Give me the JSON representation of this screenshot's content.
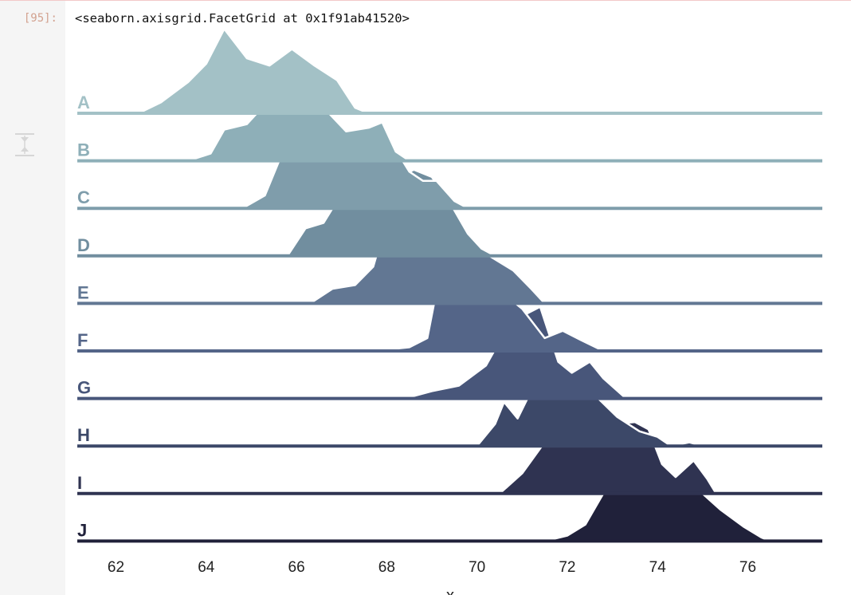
{
  "cell": {
    "prompt": "[95]:",
    "output_repr": "<seaborn.axisgrid.FacetGrid at 0x1f91ab41520>"
  },
  "icons": {
    "collapse": "collapse-output-icon"
  },
  "chart_data": {
    "type": "ridgeline",
    "xlabel": "x",
    "xlim": [
      61.2,
      77.8
    ],
    "xticks": [
      "62",
      "64",
      "66",
      "68",
      "70",
      "72",
      "74",
      "76"
    ],
    "grid": false,
    "palette": [
      "#a3c1c6",
      "#8eafb8",
      "#7f9dab",
      "#718e9f",
      "#627793",
      "#546588",
      "#48567a",
      "#3c4868",
      "#2f3351",
      "#20213a"
    ],
    "series": [
      {
        "name": "A",
        "points": [
          [
            62.5,
            0
          ],
          [
            63.0,
            0.12
          ],
          [
            63.6,
            0.34
          ],
          [
            64.0,
            0.54
          ],
          [
            64.4,
            0.92
          ],
          [
            64.9,
            0.6
          ],
          [
            65.4,
            0.52
          ],
          [
            65.9,
            0.7
          ],
          [
            66.4,
            0.52
          ],
          [
            66.9,
            0.36
          ],
          [
            67.3,
            0.06
          ],
          [
            67.6,
            0
          ]
        ]
      },
      {
        "name": "B",
        "points": [
          [
            63.6,
            0
          ],
          [
            64.1,
            0.08
          ],
          [
            64.4,
            0.34
          ],
          [
            64.9,
            0.4
          ],
          [
            65.2,
            0.56
          ],
          [
            65.6,
            1.0
          ],
          [
            66.1,
            0.8
          ],
          [
            66.6,
            0.58
          ],
          [
            67.1,
            0.32
          ],
          [
            67.6,
            0.36
          ],
          [
            67.9,
            0.42
          ],
          [
            68.2,
            0.1
          ],
          [
            68.5,
            0
          ]
        ]
      },
      {
        "name": "C",
        "points": [
          [
            64.8,
            0
          ],
          [
            65.3,
            0.14
          ],
          [
            65.7,
            0.62
          ],
          [
            66.0,
            0.84
          ],
          [
            66.6,
            0.78
          ],
          [
            67.1,
            0.72
          ],
          [
            67.6,
            0.62
          ],
          [
            67.8,
            0.54
          ],
          [
            68.1,
            0.72
          ],
          [
            68.5,
            0.4
          ],
          [
            68.8,
            0.3
          ],
          [
            69.1,
            0.3
          ],
          [
            69.5,
            0.08
          ],
          [
            69.8,
            0
          ]
        ]
      },
      {
        "name": "D",
        "points": [
          [
            65.8,
            0
          ],
          [
            66.2,
            0.3
          ],
          [
            66.6,
            0.36
          ],
          [
            67.2,
            0.84
          ],
          [
            67.6,
            0.64
          ],
          [
            68.1,
            0.8
          ],
          [
            68.6,
            0.94
          ],
          [
            69.0,
            0.86
          ],
          [
            69.4,
            0.58
          ],
          [
            69.8,
            0.24
          ],
          [
            70.1,
            0.08
          ],
          [
            70.4,
            0
          ]
        ]
      },
      {
        "name": "E",
        "points": [
          [
            66.3,
            0
          ],
          [
            66.8,
            0.16
          ],
          [
            67.3,
            0.2
          ],
          [
            67.7,
            0.4
          ],
          [
            67.9,
            0.74
          ],
          [
            68.3,
            0.7
          ],
          [
            68.8,
            0.74
          ],
          [
            69.3,
            0.62
          ],
          [
            69.7,
            0.76
          ],
          [
            70.2,
            0.54
          ],
          [
            70.8,
            0.36
          ],
          [
            71.2,
            0.16
          ],
          [
            71.5,
            0
          ]
        ]
      },
      {
        "name": "F",
        "points": [
          [
            67.7,
            0
          ],
          [
            68.5,
            0.04
          ],
          [
            68.9,
            0.14
          ],
          [
            69.2,
            0.9
          ],
          [
            69.7,
            0.64
          ],
          [
            70.1,
            0.82
          ],
          [
            70.6,
            0.62
          ],
          [
            71.0,
            0.46
          ],
          [
            71.5,
            0.14
          ],
          [
            71.9,
            0.22
          ],
          [
            72.3,
            0.12
          ],
          [
            72.8,
            0
          ]
        ]
      },
      {
        "name": "G",
        "points": [
          [
            68.4,
            0
          ],
          [
            69.0,
            0.08
          ],
          [
            69.6,
            0.14
          ],
          [
            70.2,
            0.36
          ],
          [
            70.7,
            0.8
          ],
          [
            71.0,
            0.9
          ],
          [
            71.4,
            1.0
          ],
          [
            71.8,
            0.4
          ],
          [
            72.1,
            0.28
          ],
          [
            72.5,
            0.4
          ],
          [
            72.8,
            0.22
          ],
          [
            73.3,
            0
          ]
        ]
      },
      {
        "name": "H",
        "points": [
          [
            70.0,
            0
          ],
          [
            70.4,
            0.24
          ],
          [
            70.6,
            0.48
          ],
          [
            70.9,
            0.3
          ],
          [
            71.2,
            0.6
          ],
          [
            71.6,
            1.0
          ],
          [
            72.1,
            0.78
          ],
          [
            72.6,
            0.56
          ],
          [
            73.1,
            0.32
          ],
          [
            73.6,
            0.16
          ],
          [
            74.0,
            0.1
          ],
          [
            74.3,
            0
          ],
          [
            74.7,
            0.04
          ],
          [
            75.0,
            0
          ]
        ]
      },
      {
        "name": "I",
        "points": [
          [
            70.5,
            0
          ],
          [
            71.0,
            0.22
          ],
          [
            71.5,
            0.56
          ],
          [
            71.8,
            0.8
          ],
          [
            72.2,
            0.62
          ],
          [
            72.6,
            0.86
          ],
          [
            73.1,
            0.76
          ],
          [
            73.5,
            0.78
          ],
          [
            73.8,
            0.7
          ],
          [
            74.1,
            0.32
          ],
          [
            74.4,
            0.18
          ],
          [
            74.8,
            0.36
          ],
          [
            75.1,
            0.16
          ],
          [
            75.3,
            0
          ]
        ]
      },
      {
        "name": "J",
        "points": [
          [
            71.5,
            0
          ],
          [
            72.0,
            0.06
          ],
          [
            72.4,
            0.18
          ],
          [
            72.8,
            0.52
          ],
          [
            73.2,
            0.58
          ],
          [
            73.6,
            0.74
          ],
          [
            74.0,
            1.0
          ],
          [
            74.3,
            0.6
          ],
          [
            74.9,
            0.56
          ],
          [
            75.4,
            0.34
          ],
          [
            75.9,
            0.16
          ],
          [
            76.3,
            0.04
          ],
          [
            76.5,
            0
          ]
        ]
      }
    ]
  }
}
